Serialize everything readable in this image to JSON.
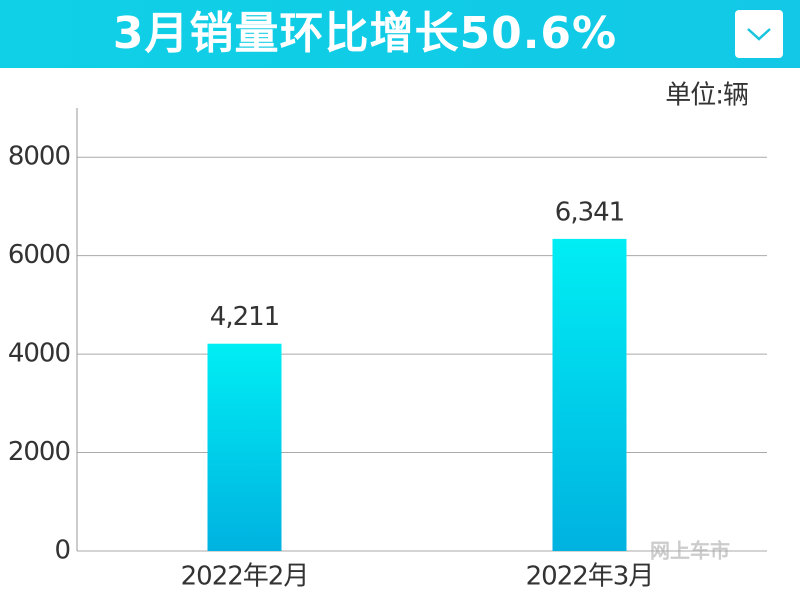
{
  "chart_data": {
    "type": "bar",
    "title": "3月销量环比增长50.6%",
    "unit_label": "单位:辆",
    "categories": [
      "2022年2月",
      "2022年3月"
    ],
    "values": [
      4211,
      6341
    ],
    "value_labels": [
      "4,211",
      "6,341"
    ],
    "color_top": "#00eef4",
    "color_bottom": "#00b2e0",
    "ylim": [
      0,
      9000
    ],
    "yticks": [
      0,
      2000,
      4000,
      6000,
      8000
    ],
    "grid": true,
    "watermark": "网上车市"
  }
}
